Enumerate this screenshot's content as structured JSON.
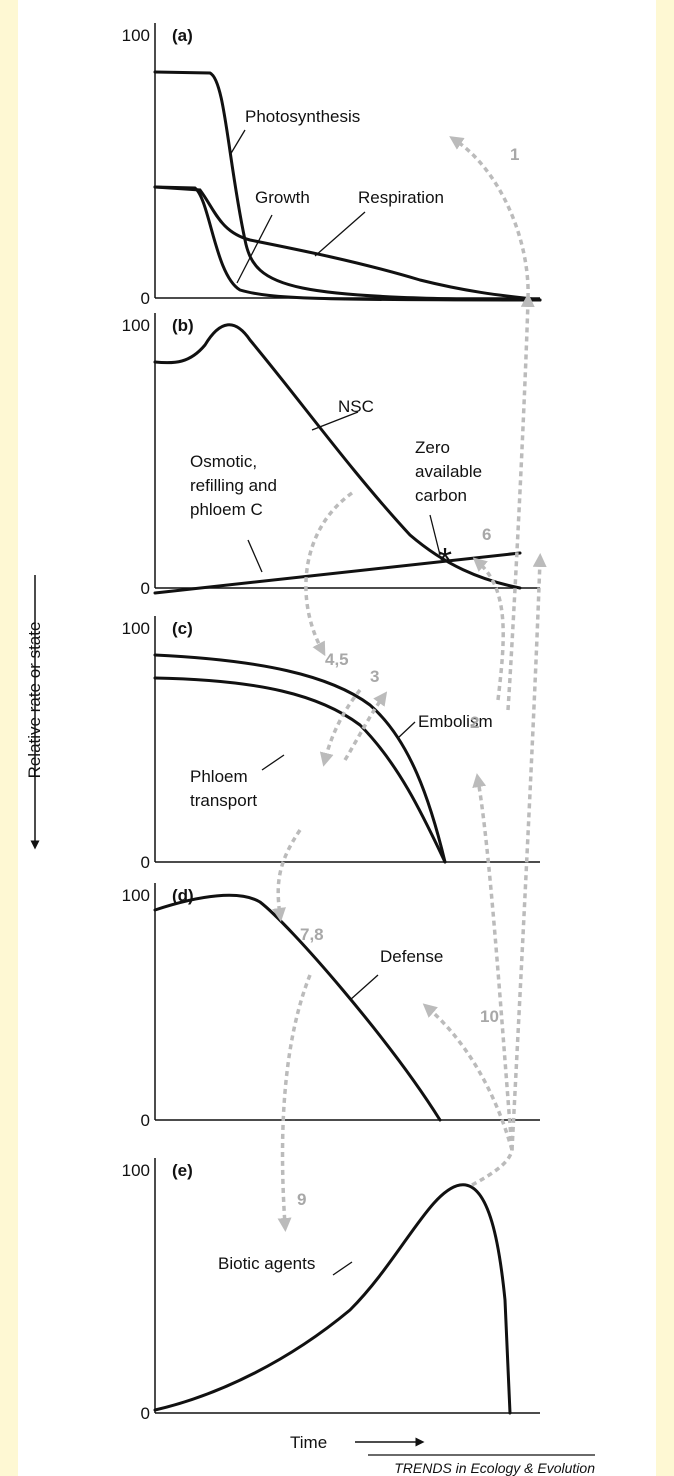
{
  "panels": [
    {
      "label": "(a)",
      "top": 100,
      "bottom": 0,
      "curves": [
        "Photosynthesis",
        "Growth",
        "Respiration"
      ]
    },
    {
      "label": "(b)",
      "top": 100,
      "bottom": 0,
      "curves": [
        "NSC",
        [
          "Zero",
          "available",
          "carbon"
        ],
        [
          "Osmotic,",
          "refilling and",
          "phloem C"
        ]
      ]
    },
    {
      "label": "(c)",
      "top": 100,
      "bottom": 0,
      "curves": [
        "Embolism",
        [
          "Phloem",
          "transport"
        ]
      ]
    },
    {
      "label": "(d)",
      "top": 100,
      "bottom": 0,
      "curves": [
        "Defense"
      ]
    },
    {
      "label": "(e)",
      "top": 100,
      "bottom": 0,
      "curves": [
        "Biotic agents"
      ]
    }
  ],
  "arrows": [
    "1",
    "6",
    "4,5",
    "3",
    "2",
    "7,8",
    "10",
    "9"
  ],
  "y_axis_label": "Relative rate or state",
  "x_axis_label": "Time",
  "footer": "TRENDS in Ecology & Evolution"
}
